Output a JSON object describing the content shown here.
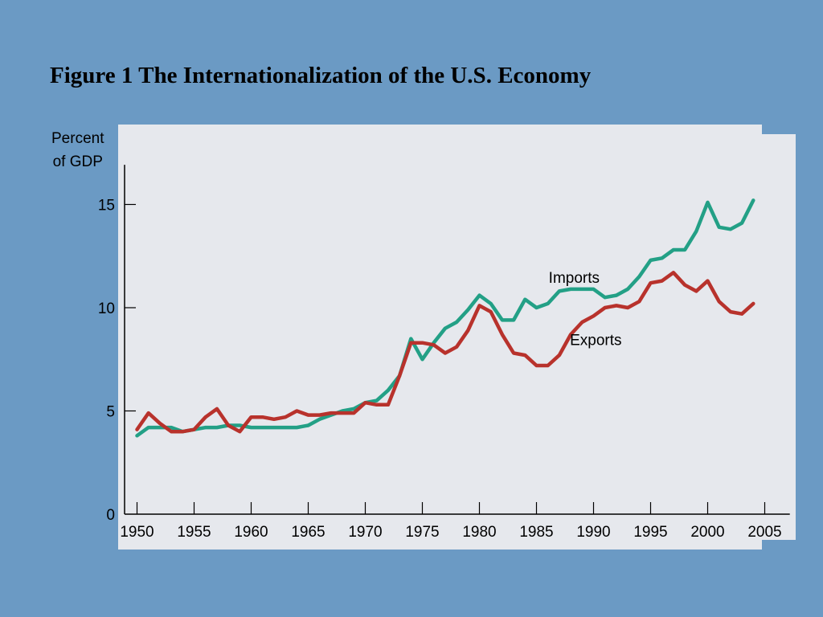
{
  "title": "Figure 1 The Internationalization of the U.S. Economy",
  "chart_data": {
    "type": "line",
    "title": "Figure 1 The Internationalization of the U.S. Economy",
    "ylabel_line1": "Percent",
    "ylabel_line2": "of GDP",
    "xlabel": "",
    "xlim": [
      1949,
      2006
    ],
    "ylim": [
      0,
      17
    ],
    "x_ticks": [
      1950,
      1955,
      1960,
      1965,
      1970,
      1975,
      1980,
      1985,
      1990,
      1995,
      2000,
      2005
    ],
    "y_ticks": [
      0,
      5,
      10,
      15
    ],
    "grid": false,
    "legend": "inline labels",
    "x": [
      1950,
      1951,
      1952,
      1953,
      1954,
      1955,
      1956,
      1957,
      1958,
      1959,
      1960,
      1961,
      1962,
      1963,
      1964,
      1965,
      1966,
      1967,
      1968,
      1969,
      1970,
      1971,
      1972,
      1973,
      1974,
      1975,
      1976,
      1977,
      1978,
      1979,
      1980,
      1981,
      1982,
      1983,
      1984,
      1985,
      1986,
      1987,
      1988,
      1989,
      1990,
      1991,
      1992,
      1993,
      1994,
      1995,
      1996,
      1997,
      1998,
      1999,
      2000,
      2001,
      2002,
      2003,
      2004
    ],
    "series": [
      {
        "name": "Imports",
        "color": "#23a086",
        "values": [
          3.8,
          4.2,
          4.2,
          4.2,
          4.0,
          4.1,
          4.2,
          4.2,
          4.3,
          4.3,
          4.2,
          4.2,
          4.2,
          4.2,
          4.2,
          4.3,
          4.6,
          4.8,
          5.0,
          5.1,
          5.4,
          5.5,
          6.0,
          6.7,
          8.5,
          7.5,
          8.3,
          9.0,
          9.3,
          9.9,
          10.6,
          10.2,
          9.4,
          9.4,
          10.4,
          10.0,
          10.2,
          10.8,
          10.9,
          10.9,
          10.9,
          10.5,
          10.6,
          10.9,
          11.5,
          12.3,
          12.4,
          12.8,
          12.8,
          13.7,
          15.1,
          13.9,
          13.8,
          14.1,
          15.2
        ]
      },
      {
        "name": "Exports",
        "color": "#b8322c",
        "values": [
          4.1,
          4.9,
          4.4,
          4.0,
          4.0,
          4.1,
          4.7,
          5.1,
          4.3,
          4.0,
          4.7,
          4.7,
          4.6,
          4.7,
          5.0,
          4.8,
          4.8,
          4.9,
          4.9,
          4.9,
          5.4,
          5.3,
          5.3,
          6.7,
          8.3,
          8.3,
          8.2,
          7.8,
          8.1,
          8.9,
          10.1,
          9.8,
          8.7,
          7.8,
          7.7,
          7.2,
          7.2,
          7.7,
          8.7,
          9.3,
          9.6,
          10.0,
          10.1,
          10.0,
          10.3,
          11.2,
          11.3,
          11.7,
          11.1,
          10.8,
          11.3,
          10.3,
          9.8,
          9.7,
          10.2
        ]
      }
    ],
    "annotations": [
      {
        "text": "Imports",
        "x": 1988.3,
        "y": 11.2
      },
      {
        "text": "Exports",
        "x": 1990.2,
        "y": 8.2
      }
    ]
  }
}
